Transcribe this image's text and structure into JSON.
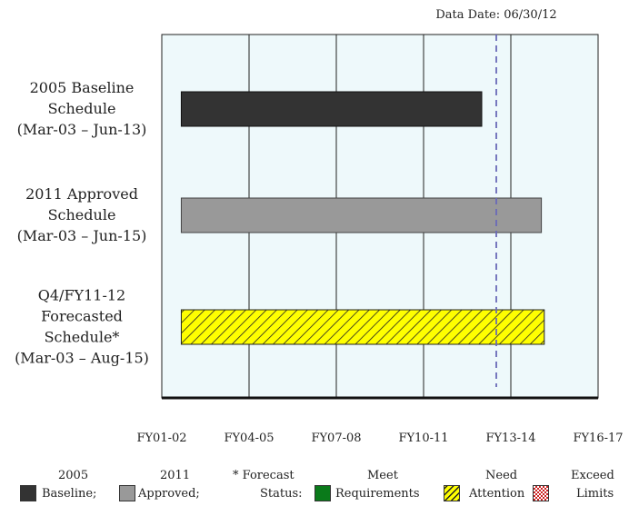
{
  "data_date": "Data Date: 06/30/12",
  "colors": {
    "baseline": "#333333",
    "approved": "#999999",
    "forecast": "#ffff00",
    "forecast_hatch": "#222222",
    "data_date_line": "#6a6ab8",
    "plot_background": "#eef9fb",
    "meet": "#0a7a1a",
    "exceed": "#cc2222"
  },
  "chart_data": {
    "type": "bar",
    "orientation": "horizontal",
    "title": "",
    "xlabel": "",
    "ylabel": "",
    "x_ticks": [
      "FY01-02",
      "FY04-05",
      "FY07-08",
      "FY10-11",
      "FY13-14",
      "FY16-17"
    ],
    "x_tick_years": [
      2001,
      2004,
      2007,
      2010,
      2013,
      2016
    ],
    "xlim": [
      2001,
      2016
    ],
    "grid": true,
    "data_date": 2012.5,
    "rows": [
      {
        "label_lines": [
          "2005 Baseline",
          "Schedule",
          "(Mar-03 – Jun-13)"
        ],
        "start": 2001.67,
        "end": 2012.0,
        "style": "solid-dark"
      },
      {
        "label_lines": [
          "2011 Approved",
          "Schedule",
          "(Mar-03 – Jun-15)"
        ],
        "start": 2001.67,
        "end": 2014.05,
        "style": "solid-gray"
      },
      {
        "label_lines": [
          "Q4/FY11-12",
          "Forecasted",
          "Schedule*",
          "(Mar-03 – Aug-15)"
        ],
        "start": 2001.67,
        "end": 2014.15,
        "style": "hatched-yellow"
      }
    ]
  },
  "legend": {
    "items": [
      {
        "key": "baseline",
        "line1": "2005",
        "line2": "Baseline;"
      },
      {
        "key": "approved",
        "line1": "2011",
        "line2": "Approved;"
      },
      {
        "key": "forecast_status",
        "line1": "* Forecast",
        "line2": "Status:"
      },
      {
        "key": "meet",
        "line1": "Meet",
        "line2": "Requirements"
      },
      {
        "key": "need",
        "line1": "Need",
        "line2": "Attention"
      },
      {
        "key": "exceed",
        "line1": "Exceed",
        "line2": "Limits"
      }
    ]
  }
}
